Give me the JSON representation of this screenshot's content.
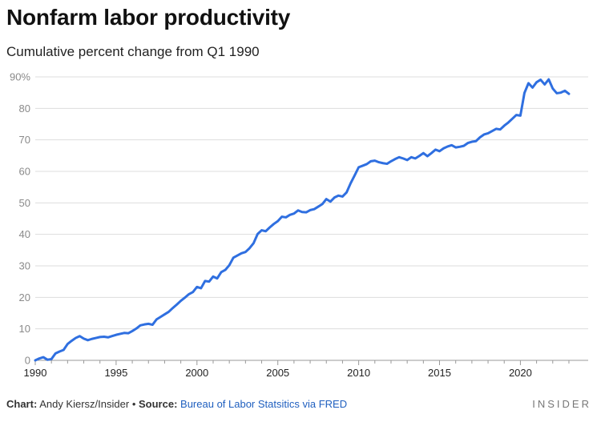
{
  "header": {
    "title": "Nonfarm labor productivity",
    "subtitle": "Cumulative percent change from Q1 1990"
  },
  "footer": {
    "chart_label": "Chart:",
    "author": "Andy Kiersz/Insider",
    "separator": "•",
    "source_label": "Source:",
    "source_text": "Bureau of Labor Statsitics via FRED",
    "brand": "INSIDER"
  },
  "colors": {
    "line": "#2f6fe0",
    "grid": "#dddddd",
    "axis": "#999999",
    "tick_text": "#8a8a8a",
    "x_tick_text": "#222222"
  },
  "chart_data": {
    "type": "line",
    "title": "Nonfarm labor productivity",
    "subtitle": "Cumulative percent change from Q1 1990",
    "xlabel": "",
    "ylabel": "",
    "xlim": [
      1990,
      2023.25
    ],
    "ylim": [
      0,
      90
    ],
    "grid": true,
    "y_ticks": [
      0,
      10,
      20,
      30,
      40,
      50,
      60,
      70,
      80,
      90
    ],
    "y_tick_labels": [
      "0",
      "10",
      "20",
      "30",
      "40",
      "50",
      "60",
      "70",
      "80",
      "90%"
    ],
    "x_ticks": [
      1990,
      1995,
      2000,
      2005,
      2010,
      2015,
      2020
    ],
    "x_tick_labels": [
      "1990",
      "1995",
      "2000",
      "2005",
      "2010",
      "2015",
      "2020"
    ],
    "series": [
      {
        "name": "Nonfarm labor productivity",
        "x": [
          1990,
          1990.25,
          1990.5,
          1990.75,
          1991,
          1991.25,
          1991.5,
          1991.75,
          1992,
          1992.25,
          1992.5,
          1992.75,
          1993,
          1993.25,
          1993.5,
          1993.75,
          1994,
          1994.25,
          1994.5,
          1994.75,
          1995,
          1995.25,
          1995.5,
          1995.75,
          1996,
          1996.25,
          1996.5,
          1996.75,
          1997,
          1997.25,
          1997.5,
          1997.75,
          1998,
          1998.25,
          1998.5,
          1998.75,
          1999,
          1999.25,
          1999.5,
          1999.75,
          2000,
          2000.25,
          2000.5,
          2000.75,
          2001,
          2001.25,
          2001.5,
          2001.75,
          2002,
          2002.25,
          2002.5,
          2002.75,
          2003,
          2003.25,
          2003.5,
          2003.75,
          2004,
          2004.25,
          2004.5,
          2004.75,
          2005,
          2005.25,
          2005.5,
          2005.75,
          2006,
          2006.25,
          2006.5,
          2006.75,
          2007,
          2007.25,
          2007.5,
          2007.75,
          2008,
          2008.25,
          2008.5,
          2008.75,
          2009,
          2009.25,
          2009.5,
          2009.75,
          2010,
          2010.25,
          2010.5,
          2010.75,
          2011,
          2011.25,
          2011.5,
          2011.75,
          2012,
          2012.25,
          2012.5,
          2012.75,
          2013,
          2013.25,
          2013.5,
          2013.75,
          2014,
          2014.25,
          2014.5,
          2014.75,
          2015,
          2015.25,
          2015.5,
          2015.75,
          2016,
          2016.25,
          2016.5,
          2016.75,
          2017,
          2017.25,
          2017.5,
          2017.75,
          2018,
          2018.25,
          2018.5,
          2018.75,
          2019,
          2019.25,
          2019.5,
          2019.75,
          2020,
          2020.25,
          2020.5,
          2020.75,
          2021,
          2021.25,
          2021.5,
          2021.75,
          2022,
          2022.25,
          2022.5,
          2022.75,
          2023
        ],
        "values": [
          0,
          0.6,
          1.0,
          0.2,
          0.4,
          2.2,
          2.8,
          3.3,
          5.2,
          6.2,
          7.1,
          7.7,
          6.9,
          6.4,
          6.8,
          7.1,
          7.4,
          7.5,
          7.3,
          7.7,
          8.1,
          8.4,
          8.7,
          8.6,
          9.3,
          10.1,
          11.1,
          11.4,
          11.6,
          11.3,
          13.0,
          13.8,
          14.6,
          15.4,
          16.6,
          17.7,
          18.9,
          19.9,
          21.0,
          21.7,
          23.3,
          22.9,
          25.2,
          25.0,
          26.6,
          26.0,
          28.0,
          28.7,
          30.2,
          32.6,
          33.3,
          34.0,
          34.4,
          35.6,
          37.2,
          40.1,
          41.3,
          41.0,
          42.2,
          43.3,
          44.2,
          45.6,
          45.4,
          46.2,
          46.6,
          47.6,
          47.1,
          47.0,
          47.7,
          48.0,
          48.8,
          49.6,
          51.2,
          50.4,
          51.7,
          52.3,
          52.0,
          53.3,
          56.2,
          58.7,
          61.3,
          61.8,
          62.3,
          63.2,
          63.4,
          62.9,
          62.6,
          62.4,
          63.2,
          63.9,
          64.5,
          64.1,
          63.6,
          64.5,
          64.1,
          64.9,
          65.8,
          64.8,
          65.8,
          66.9,
          66.4,
          67.3,
          67.9,
          68.3,
          67.6,
          67.8,
          68.1,
          69.0,
          69.4,
          69.6,
          70.8,
          71.7,
          72.1,
          72.8,
          73.5,
          73.3,
          74.5,
          75.5,
          76.7,
          77.9,
          77.7,
          84.9,
          88.0,
          86.6,
          88.3,
          89.1,
          87.6,
          89.2,
          86.3,
          84.8,
          85.0,
          85.6,
          84.6
        ]
      }
    ]
  }
}
